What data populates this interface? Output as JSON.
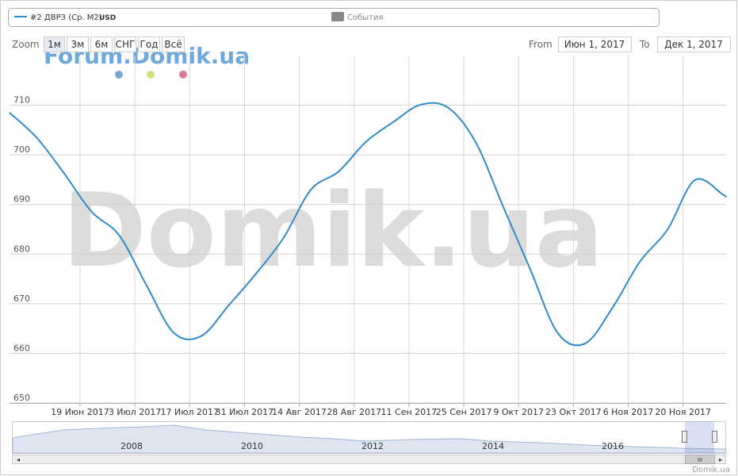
{
  "chart_data": {
    "type": "line",
    "x": [
      "2017-06-01",
      "2017-06-08",
      "2017-06-15",
      "2017-06-22",
      "2017-06-29",
      "2017-07-06",
      "2017-07-13",
      "2017-07-20",
      "2017-07-27",
      "2017-08-03",
      "2017-08-10",
      "2017-08-17",
      "2017-08-24",
      "2017-08-31",
      "2017-09-07",
      "2017-09-14",
      "2017-09-21",
      "2017-09-28",
      "2017-10-05",
      "2017-10-12",
      "2017-10-19",
      "2017-10-26",
      "2017-11-02",
      "2017-11-09",
      "2017-11-16",
      "2017-11-23",
      "2017-11-30",
      "2017-12-01"
    ],
    "series": [
      {
        "name": "#2 ДВРЗ (Ср. М2)",
        "unit": "USD",
        "color": "#2f8bc9",
        "values": [
          708.5,
          703.4,
          696.2,
          688.5,
          683.8,
          673.7,
          664.1,
          663.5,
          669.7,
          676.1,
          683.3,
          693,
          696.6,
          702.6,
          706.6,
          710.1,
          709.5,
          702.6,
          689.7,
          676.9,
          664.1,
          662,
          669.2,
          678.5,
          684.9,
          694.9,
          692.1,
          691.4
        ]
      }
    ],
    "xlim": [
      "2017-06-01",
      "2017-12-01"
    ],
    "xticks": [
      {
        "value": "2017-06-19",
        "label": "19 Июн 2017"
      },
      {
        "value": "2017-07-03",
        "label": "3 Июл 2017"
      },
      {
        "value": "2017-07-17",
        "label": "17 Июл 2017"
      },
      {
        "value": "2017-07-31",
        "label": "31 Июл 2017"
      },
      {
        "value": "2017-08-14",
        "label": "14 Авг 2017"
      },
      {
        "value": "2017-08-28",
        "label": "28 Авг 2017"
      },
      {
        "value": "2017-09-11",
        "label": "11 Сен 2017"
      },
      {
        "value": "2017-09-25",
        "label": "25 Сен 2017"
      },
      {
        "value": "2017-10-09",
        "label": "9 Окт 2017"
      },
      {
        "value": "2017-10-23",
        "label": "23 Окт 2017"
      },
      {
        "value": "2017-11-06",
        "label": "6 Ноя 2017"
      },
      {
        "value": "2017-11-20",
        "label": "20 Ноя 2017"
      }
    ],
    "ylim": [
      650,
      720
    ],
    "yticks": [
      650,
      660,
      670,
      680,
      690,
      700,
      710
    ],
    "grid": true
  },
  "ui": {
    "events": "События",
    "zoom": "Zoom",
    "zoom_buttons": [
      "1м",
      "3м",
      "6м",
      "СНГ",
      "Год",
      "Всё"
    ],
    "from": "From",
    "from_value": "Июн 1, 2017",
    "to": "To",
    "to_value": "Дек 1, 2017",
    "watermark": "Domik.ua",
    "forum": "Forum.Domik.ua",
    "credit": "Domik.ua",
    "navigator_years": [
      "2008",
      "2010",
      "2012",
      "2014",
      "2016"
    ],
    "scroll_grip": "III"
  }
}
